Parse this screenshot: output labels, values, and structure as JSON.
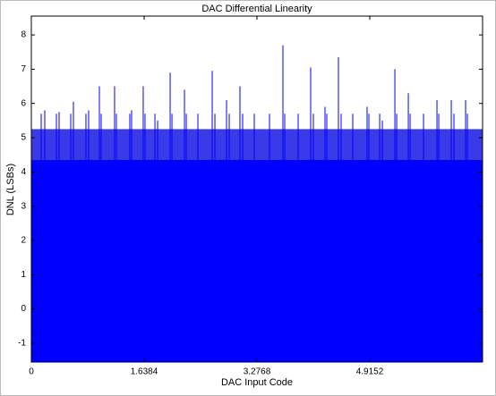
{
  "chart_data": {
    "type": "stem",
    "title": "DAC Differential Linearity",
    "x_label": "DAC Input Code",
    "y_label": "DNL (LSBs)",
    "color": "#0000ff",
    "band_color": "#3a3ae8",
    "band_values": [
      4.35,
      5.25
    ],
    "xlim": [
      0,
      6.5536
    ],
    "xticks": [
      0,
      1.6384,
      3.2768,
      4.9152
    ],
    "ylim": [
      -1.55,
      8.55
    ],
    "yticks": [
      -1,
      0,
      1,
      2,
      3,
      4,
      5,
      6,
      7,
      8
    ],
    "grid": false,
    "x": [
      0.143,
      0.195,
      0.364,
      0.403,
      0.572,
      0.611,
      0.793,
      0.832,
      0.988,
      1.014,
      1.209,
      1.235,
      1.43,
      1.456,
      1.625,
      1.651,
      1.795,
      1.834,
      2.016,
      2.042,
      2.224,
      2.25,
      2.419,
      2.627,
      2.666,
      2.835,
      2.874,
      3.03,
      3.069,
      3.238,
      3.459,
      3.654,
      3.68,
      3.875,
      4.057,
      4.096,
      4.265,
      4.291,
      4.46,
      4.499,
      4.668,
      4.876,
      4.902,
      5.059,
      5.098,
      5.28,
      5.306,
      5.475,
      5.501,
      5.696,
      5.891,
      5.917,
      6.099,
      6.138,
      6.307,
      6.333
    ],
    "values": [
      5.7,
      5.8,
      5.7,
      5.75,
      5.7,
      6.05,
      5.7,
      5.8,
      6.5,
      5.7,
      6.5,
      5.7,
      5.7,
      5.8,
      6.5,
      5.7,
      5.7,
      5.5,
      6.9,
      5.7,
      6.4,
      5.7,
      5.7,
      6.95,
      5.7,
      6.1,
      5.7,
      6.5,
      5.7,
      5.7,
      5.7,
      7.7,
      5.7,
      5.7,
      7.05,
      5.7,
      5.9,
      5.7,
      7.35,
      5.7,
      5.7,
      5.9,
      5.7,
      5.7,
      5.5,
      7.0,
      5.7,
      6.3,
      5.7,
      5.7,
      6.1,
      5.7,
      6.1,
      5.7,
      6.1,
      5.7
    ]
  }
}
